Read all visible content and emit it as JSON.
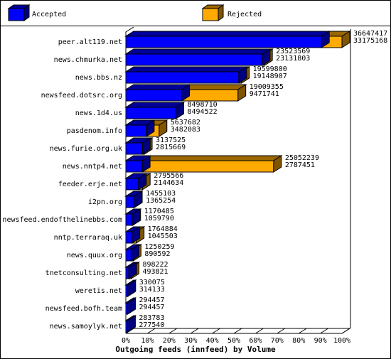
{
  "chart_data": {
    "type": "bar3d-overlap",
    "title": "Outgoing feeds (innfeed) by Volume",
    "categories": [
      "peer.alt119.net",
      "news.chmurka.net",
      "news.bbs.nz",
      "newsfeed.dotsrc.org",
      "news.1d4.us",
      "pasdenom.info",
      "news.furie.org.uk",
      "news.nntp4.net",
      "feeder.erje.net",
      "i2pn.org",
      "newsfeed.endofthelinebbs.com",
      "nntp.terraraq.uk",
      "news.quux.org",
      "tnetconsulting.net",
      "weretis.net",
      "newsfeed.bofh.team",
      "news.samoylyk.net"
    ],
    "series": [
      {
        "name": "Rejected",
        "color": "#ffaa00",
        "values": [
          36647417,
          23523569,
          19599800,
          19009355,
          8498710,
          5637682,
          3137525,
          25052239,
          2795566,
          1455103,
          1170485,
          1764884,
          1250259,
          898222,
          330075,
          294457,
          283783
        ]
      },
      {
        "name": "Accepted",
        "color": "#0000ff",
        "values": [
          33175168,
          23131803,
          19148907,
          9471741,
          8494522,
          3482083,
          2815669,
          2787451,
          2144634,
          1365254,
          1059790,
          1045503,
          890592,
          493821,
          314133,
          294457,
          277540
        ]
      }
    ],
    "xlim": [
      0,
      36647417
    ],
    "xticks": [
      {
        "value": 0,
        "label": "0%"
      },
      {
        "value": 3664741.7,
        "label": "10%"
      },
      {
        "value": 7329483.4,
        "label": "20%"
      },
      {
        "value": 10994225.1,
        "label": "30%"
      },
      {
        "value": 14658966.8,
        "label": "40%"
      },
      {
        "value": 18323708.5,
        "label": "50%"
      },
      {
        "value": 21988450.2,
        "label": "60%"
      },
      {
        "value": 25653191.9,
        "label": "70%"
      },
      {
        "value": 29317933.6,
        "label": "80%"
      },
      {
        "value": 32982675.3,
        "label": "90%"
      },
      {
        "value": 36647417,
        "label": "100%"
      }
    ]
  }
}
